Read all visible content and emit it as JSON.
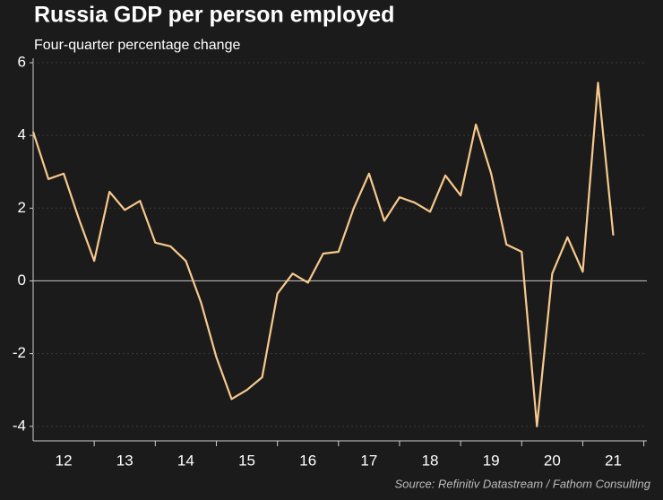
{
  "chart_data": {
    "type": "line",
    "title": "Russia GDP per person employed",
    "subtitle": "Four-quarter percentage change",
    "source": "Source: Refinitiv Datastream / Fathom Consulting",
    "x": [
      2012,
      2012.25,
      2012.5,
      2012.75,
      2013,
      2013.25,
      2013.5,
      2013.75,
      2014,
      2014.25,
      2014.5,
      2014.75,
      2015,
      2015.25,
      2015.5,
      2015.75,
      2016,
      2016.25,
      2016.5,
      2016.75,
      2017,
      2017.25,
      2017.5,
      2017.75,
      2018,
      2018.25,
      2018.5,
      2018.75,
      2019,
      2019.25,
      2019.5,
      2019.75,
      2020,
      2020.25,
      2020.5,
      2020.75,
      2021,
      2021.25,
      2021.5
    ],
    "series": [
      {
        "name": "GDP per person employed",
        "color": "#f7c98c",
        "values": [
          4.1,
          2.8,
          2.95,
          1.7,
          0.55,
          2.45,
          1.95,
          2.2,
          1.05,
          0.95,
          0.55,
          -0.6,
          -2.1,
          -3.25,
          -3.0,
          -2.65,
          -0.35,
          0.2,
          -0.05,
          0.75,
          0.8,
          2.0,
          2.95,
          1.65,
          2.3,
          2.15,
          1.9,
          2.9,
          2.35,
          4.3,
          2.95,
          1.0,
          0.8,
          -4.0,
          0.2,
          1.2,
          0.25,
          5.45,
          1.25
        ]
      }
    ],
    "xlim": [
      2012,
      2022.05
    ],
    "xticks": [
      {
        "value": 2012.5,
        "label": "12"
      },
      {
        "value": 2013.5,
        "label": "13"
      },
      {
        "value": 2014.5,
        "label": "14"
      },
      {
        "value": 2015.5,
        "label": "15"
      },
      {
        "value": 2016.5,
        "label": "16"
      },
      {
        "value": 2017.5,
        "label": "17"
      },
      {
        "value": 2018.5,
        "label": "18"
      },
      {
        "value": 2019.5,
        "label": "19"
      },
      {
        "value": 2020.5,
        "label": "20"
      },
      {
        "value": 2021.5,
        "label": "21"
      }
    ],
    "ylim": [
      -4.4,
      6
    ],
    "yticks": [
      -4,
      -2,
      0,
      2,
      4,
      6
    ],
    "grid": true
  }
}
